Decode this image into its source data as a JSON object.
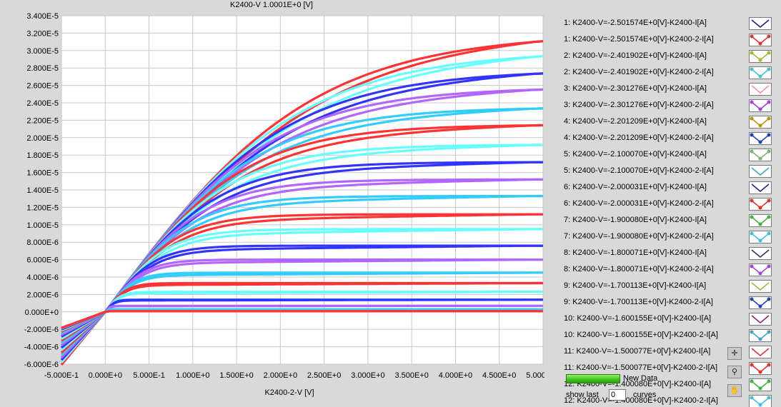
{
  "window": {
    "title": "K2400-V 1.0001E+0 [V]"
  },
  "chart_data": {
    "type": "line",
    "title": "K2400-V 1.0001E+0 [V]",
    "xlabel": "K2400-2-V  [V]",
    "ylabel": "",
    "xlim": [
      -0.5,
      5.0
    ],
    "ylim": [
      -6e-06,
      3.4e-05
    ],
    "grid": true,
    "x_ticks": [
      "-5.000E-1",
      "0.000E+0",
      "5.000E-1",
      "1.000E+0",
      "1.500E+0",
      "2.000E+0",
      "2.500E+0",
      "3.000E+0",
      "3.500E+0",
      "4.000E+0",
      "4.500E+0",
      "5.000E+0"
    ],
    "y_ticks": [
      "3.400E-5",
      "3.200E-5",
      "3.000E-5",
      "2.800E-5",
      "2.600E-5",
      "2.400E-5",
      "2.200E-5",
      "2.000E-5",
      "1.800E-5",
      "1.600E-5",
      "1.400E-5",
      "1.200E-5",
      "1.000E-5",
      "8.000E-6",
      "6.000E-6",
      "4.000E-6",
      "2.000E-6",
      "0.000E+0",
      "-2.000E-6",
      "-4.000E-6",
      "-6.000E-6"
    ],
    "x_tick_values": [
      -0.5,
      0,
      0.5,
      1.0,
      1.5,
      2.0,
      2.5,
      3.0,
      3.5,
      4.0,
      4.5,
      5.0
    ],
    "y_tick_values": [
      3.4e-05,
      3.2e-05,
      3e-05,
      2.8e-05,
      2.6e-05,
      2.4e-05,
      2.2e-05,
      2e-05,
      1.8e-05,
      1.6e-05,
      1.4e-05,
      1.2e-05,
      1e-05,
      8e-06,
      6e-06,
      4e-06,
      2e-06,
      0,
      -2e-06,
      -4e-06,
      -6e-06
    ],
    "series": [
      {
        "color": "#ff3333",
        "saturation_current": 3.2e-05
      },
      {
        "color": "#66ffff",
        "saturation_current": 3e-05
      },
      {
        "color": "#3333ff",
        "saturation_current": 2.78e-05
      },
      {
        "color": "#b366ff",
        "saturation_current": 2.58e-05
      },
      {
        "color": "#33ccff",
        "saturation_current": 2.35e-05
      },
      {
        "color": "#ff3333",
        "saturation_current": 2.15e-05
      },
      {
        "color": "#66ffff",
        "saturation_current": 1.92e-05
      },
      {
        "color": "#3333ff",
        "saturation_current": 1.72e-05
      },
      {
        "color": "#b366ff",
        "saturation_current": 1.52e-05
      },
      {
        "color": "#33ccff",
        "saturation_current": 1.33e-05
      },
      {
        "color": "#ff3333",
        "saturation_current": 1.12e-05
      },
      {
        "color": "#66ffff",
        "saturation_current": 9.5e-06
      },
      {
        "color": "#3333ff",
        "saturation_current": 7.6e-06
      },
      {
        "color": "#b366ff",
        "saturation_current": 6e-06
      },
      {
        "color": "#33ccff",
        "saturation_current": 4.5e-06
      },
      {
        "color": "#ff3333",
        "saturation_current": 3.3e-06
      },
      {
        "color": "#66ffff",
        "saturation_current": 2.3e-06
      },
      {
        "color": "#3333ff",
        "saturation_current": 1.4e-06
      },
      {
        "color": "#b366ff",
        "saturation_current": 7e-07
      },
      {
        "color": "#33ccff",
        "saturation_current": 3e-07
      },
      {
        "color": "#ff3333",
        "saturation_current": 8e-08
      }
    ]
  },
  "legend": {
    "items": [
      {
        "label": "1: K2400-V=-2.501574E+0[V]-K2400-I[A]",
        "color": "#1a1a80",
        "marker": false
      },
      {
        "label": "1: K2400-V=-2.501574E+0[V]-K2400-2-I[A]",
        "color": "#e03030",
        "marker": true
      },
      {
        "label": "2: K2400-V=-2.401902E+0[V]-K2400-I[A]",
        "color": "#b0b030",
        "marker": true
      },
      {
        "label": "2: K2400-V=-2.401902E+0[V]-K2400-2-I[A]",
        "color": "#40c0e0",
        "marker": true
      },
      {
        "label": "3: K2400-V=-2.301276E+0[V]-K2400-I[A]",
        "color": "#f090b0",
        "marker": false
      },
      {
        "label": "3: K2400-V=-2.301276E+0[V]-K2400-2-I[A]",
        "color": "#a040e0",
        "marker": true
      },
      {
        "label": "4: K2400-V=-2.201209E+0[V]-K2400-I[A]",
        "color": "#c09000",
        "marker": true
      },
      {
        "label": "4: K2400-V=-2.201209E+0[V]-K2400-2-I[A]",
        "color": "#2040c0",
        "marker": true
      },
      {
        "label": "5: K2400-V=-2.100070E+0[V]-K2400-I[A]",
        "color": "#80b070",
        "marker": true
      },
      {
        "label": "5: K2400-V=-2.100070E+0[V]-K2400-2-I[A]",
        "color": "#40a0d0",
        "marker": false
      },
      {
        "label": "6: K2400-V=-2.000031E+0[V]-K2400-I[A]",
        "color": "#1a1a80",
        "marker": false
      },
      {
        "label": "6: K2400-V=-2.000031E+0[V]-K2400-2-I[A]",
        "color": "#e03030",
        "marker": true
      },
      {
        "label": "7: K2400-V=-1.900080E+0[V]-K2400-I[A]",
        "color": "#40b040",
        "marker": true
      },
      {
        "label": "7: K2400-V=-1.900080E+0[V]-K2400-2-I[A]",
        "color": "#40c0e0",
        "marker": true
      },
      {
        "label": "8: K2400-V=-1.800071E+0[V]-K2400-I[A]",
        "color": "#303060",
        "marker": false
      },
      {
        "label": "8: K2400-V=-1.800071E+0[V]-K2400-2-I[A]",
        "color": "#a040e0",
        "marker": true
      },
      {
        "label": "9: K2400-V=-1.700113E+0[V]-K2400-I[A]",
        "color": "#b0b030",
        "marker": false
      },
      {
        "label": "9: K2400-V=-1.700113E+0[V]-K2400-2-I[A]",
        "color": "#2040c0",
        "marker": true
      },
      {
        "label": "10: K2400-V=-1.600155E+0[V]-K2400-I[A]",
        "color": "#802080",
        "marker": false
      },
      {
        "label": "10: K2400-V=-1.600155E+0[V]-K2400-2-I[A]",
        "color": "#40a0d0",
        "marker": true
      },
      {
        "label": "11: K2400-V=-1.500077E+0[V]-K2400-I[A]",
        "color": "#e03030",
        "marker": false
      },
      {
        "label": "11: K2400-V=-1.500077E+0[V]-K2400-2-I[A]",
        "color": "#e03030",
        "marker": true
      },
      {
        "label": "12: K2400-V=-1.400080E+0[V]-K2400-I[A]",
        "color": "#40b040",
        "marker": true
      },
      {
        "label": "12: K2400-V=-1.400080E+0[V]-K2400-2-I[A]",
        "color": "#40c0e0",
        "marker": true
      }
    ]
  },
  "controls": {
    "new_data_label": "New Data",
    "show_last_label": "show last",
    "show_last_value": "0",
    "curves_label": "curves"
  }
}
